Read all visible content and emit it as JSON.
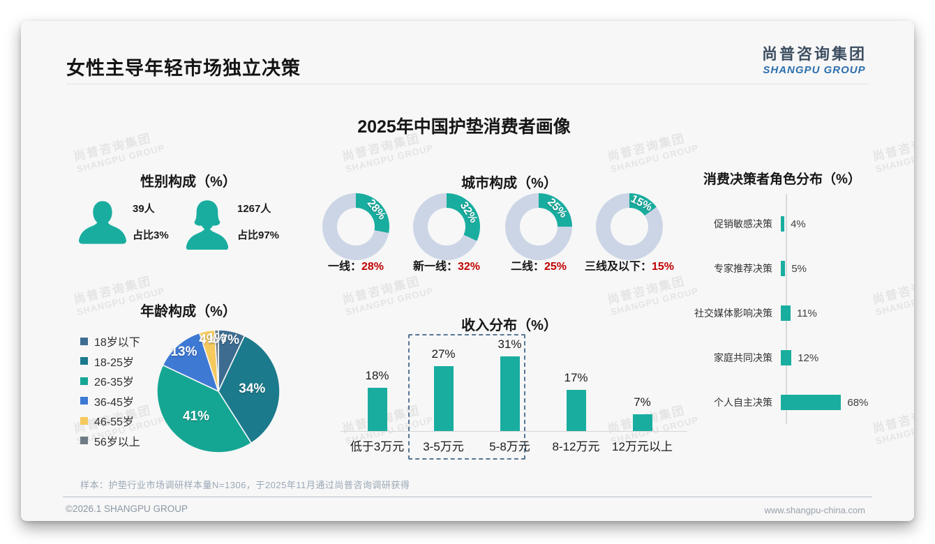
{
  "page": {
    "title": "女性主导年轻市场独立决策",
    "logo": {
      "cn": "尚普咨询集团",
      "en": "SHANGPU GROUP"
    },
    "main_title": "2025年中国护垫消费者画像",
    "watermark": {
      "line1": "尚普咨询集团",
      "line2": "SHANGPU GROUP"
    },
    "footer": {
      "sample_note": "样本：护垫行业市场调研样本量N=1306，于2025年11月通过尚普咨询调研获得",
      "copyright": "©2026.1 SHANGPU GROUP",
      "website": "www.shangpu-china.com"
    }
  },
  "gender": {
    "title": "性别构成（%）",
    "male": {
      "count": "39人",
      "share": "占比3%"
    },
    "female": {
      "count": "1267人",
      "share": "占比97%"
    }
  },
  "colors": {
    "accent_teal": "#19ad9f",
    "donut_track": "#ccd5e6",
    "value_red": "#c00000"
  },
  "chart_data": [
    {
      "type": "pie",
      "title": "年龄构成（%）",
      "categories": [
        "18岁以下",
        "18-25岁",
        "26-35岁",
        "36-45岁",
        "46-55岁",
        "56岁以上"
      ],
      "values": [
        7,
        34,
        41,
        13,
        4,
        1
      ],
      "colors": [
        "#3e6c90",
        "#1b7b8c",
        "#14a693",
        "#3e79d4",
        "#f6c95e",
        "#6e7b85"
      ],
      "legend_position": "left",
      "label_format": "percent-inside-white"
    },
    {
      "type": "donut",
      "title": "城市构成（%）",
      "categories": [
        "一线",
        "新一线",
        "二线",
        "三线及以下"
      ],
      "values": [
        28,
        32,
        25,
        15
      ],
      "segment_color": "#19ad9f",
      "ring_color": "#ccd5e6",
      "caption_value_color": "#c00000"
    },
    {
      "type": "bar",
      "title": "收入分布（%）",
      "categories": [
        "低于3万元",
        "3-5万元",
        "5-8万元",
        "8-12万元",
        "12万元以上"
      ],
      "values": [
        18,
        27,
        31,
        17,
        7
      ],
      "bar_color": "#19ad9f",
      "ylim": [
        0,
        35
      ],
      "highlight": {
        "categories": [
          "3-5万元",
          "5-8万元"
        ],
        "style": "dashed-box"
      }
    },
    {
      "type": "bar-horizontal",
      "title": "消费决策者角色分布（%）",
      "categories": [
        "促销敏感决策",
        "专家推荐决策",
        "社交媒体影响决策",
        "家庭共同决策",
        "个人自主决策"
      ],
      "values": [
        4,
        5,
        11,
        12,
        68
      ],
      "bar_color": "#19ad9f",
      "xlim": [
        0,
        80
      ]
    }
  ]
}
